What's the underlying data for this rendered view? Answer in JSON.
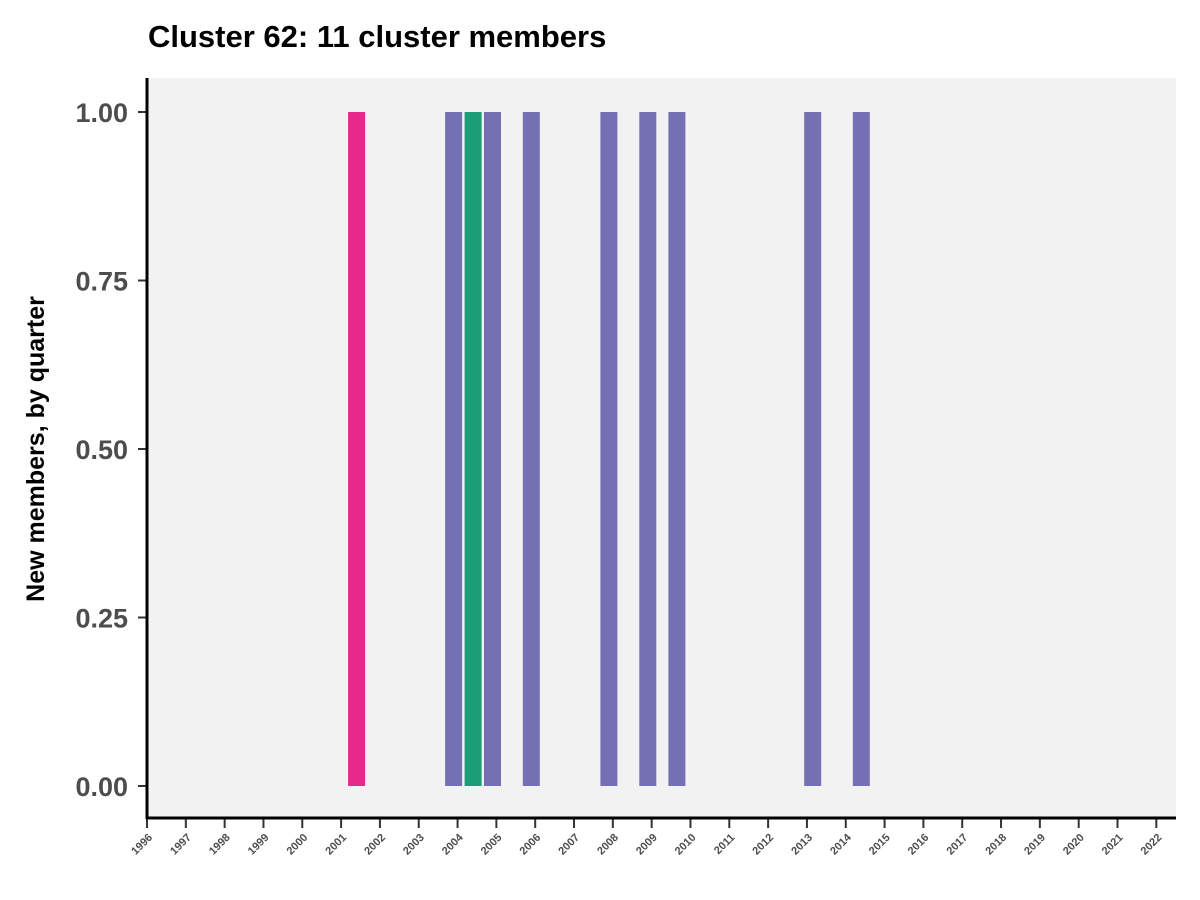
{
  "chart_data": {
    "type": "bar",
    "title": "Cluster 62: 11 cluster members",
    "xlabel": "",
    "ylabel": "New members, by quarter",
    "xlim": [
      1996,
      2022
    ],
    "ylim": [
      0,
      1
    ],
    "y_ticks": [
      "0.00",
      "0.25",
      "0.50",
      "0.75",
      "1.00"
    ],
    "y_tick_values": [
      0,
      0.25,
      0.5,
      0.75,
      1.0
    ],
    "x_ticks": [
      "1996",
      "1997",
      "1998",
      "1999",
      "2000",
      "2001",
      "2002",
      "2003",
      "2004",
      "2005",
      "2006",
      "2007",
      "2008",
      "2009",
      "2010",
      "2011",
      "2012",
      "2013",
      "2014",
      "2015",
      "2016",
      "2017",
      "2018",
      "2019",
      "2020",
      "2021",
      "2022"
    ],
    "grid": false,
    "legend": "none",
    "panel_background": "#f2f2f2",
    "bars": [
      {
        "quarter_start": 2001.0,
        "value": 1,
        "color": "#e7298a"
      },
      {
        "quarter_start": 2003.5,
        "value": 1,
        "color": "#7570b3"
      },
      {
        "quarter_start": 2004.0,
        "value": 1,
        "color": "#1b9e77"
      },
      {
        "quarter_start": 2004.5,
        "value": 1,
        "color": "#7570b3"
      },
      {
        "quarter_start": 2005.5,
        "value": 1,
        "color": "#7570b3"
      },
      {
        "quarter_start": 2007.5,
        "value": 1,
        "color": "#7570b3"
      },
      {
        "quarter_start": 2008.5,
        "value": 1,
        "color": "#7570b3"
      },
      {
        "quarter_start": 2009.25,
        "value": 1,
        "color": "#7570b3"
      },
      {
        "quarter_start": 2012.75,
        "value": 1,
        "color": "#7570b3"
      },
      {
        "quarter_start": 2014.0,
        "value": 1,
        "color": "#7570b3"
      }
    ]
  }
}
